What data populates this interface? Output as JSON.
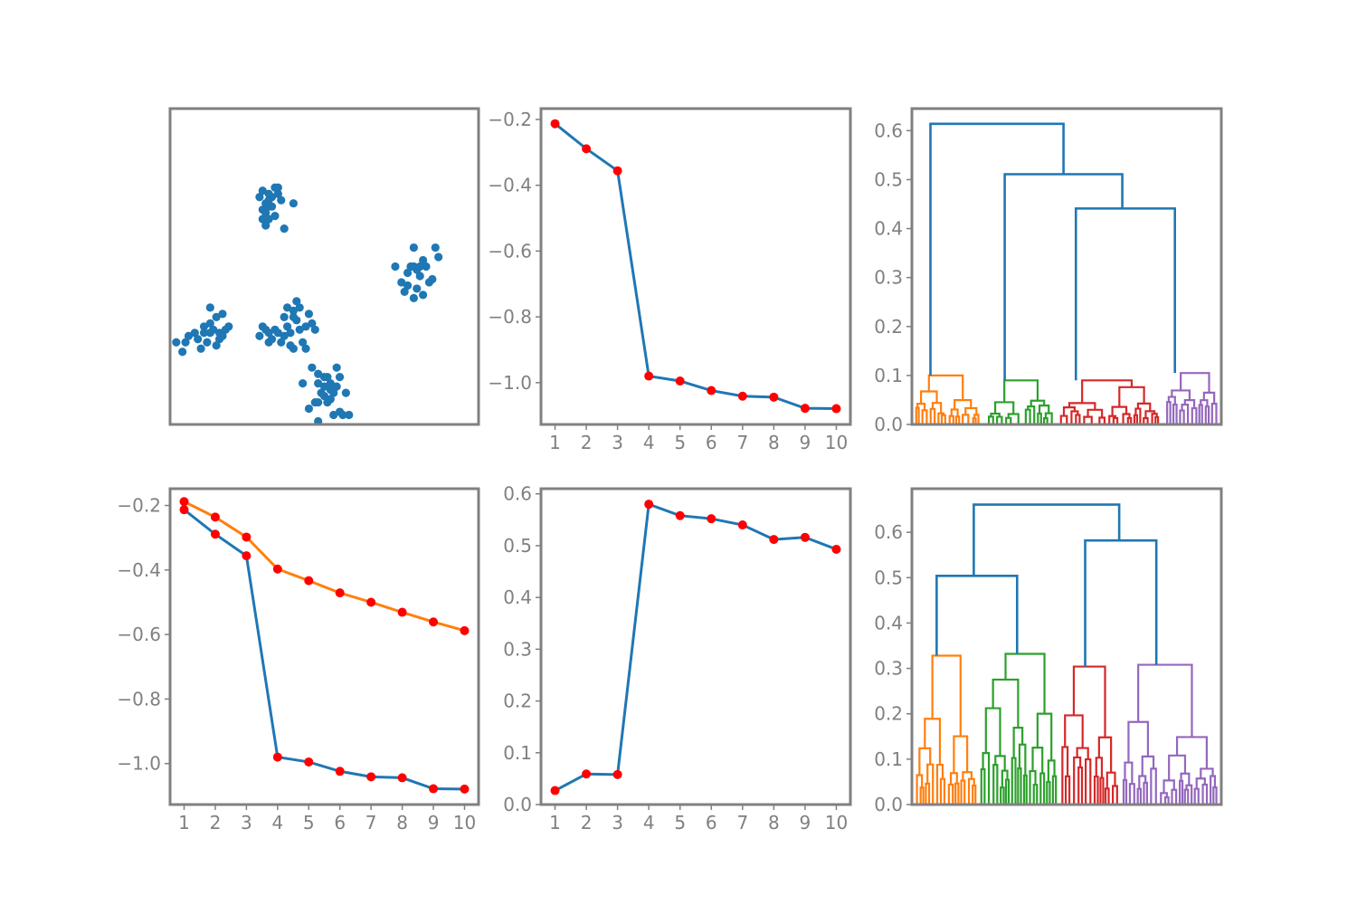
{
  "colors": {
    "blue": "#1f77b4",
    "orange": "#ff7f0e",
    "green": "#2ca02c",
    "red": "#d62728",
    "purple": "#9467bd",
    "marker": "#ff0000",
    "axis": "#808080"
  },
  "chart_data": [
    {
      "id": "scatter",
      "type": "scatter",
      "xlim": [
        0,
        10
      ],
      "ylim": [
        0,
        10
      ],
      "axes_visible": false,
      "series": [
        {
          "color": "#1f77b4",
          "points": [
            [
              2.9,
              2.8
            ],
            [
              3.0,
              3.1
            ],
            [
              3.1,
              3.0
            ],
            [
              3.2,
              2.6
            ],
            [
              3.2,
              2.9
            ],
            [
              3.3,
              2.7
            ],
            [
              3.4,
              3.0
            ],
            [
              3.5,
              2.9
            ],
            [
              3.6,
              2.6
            ],
            [
              3.7,
              2.8
            ],
            [
              3.8,
              3.1
            ],
            [
              3.9,
              2.9
            ],
            [
              4.1,
              3.3
            ],
            [
              4.4,
              3.1
            ],
            [
              4.6,
              3.2
            ],
            [
              4.2,
              3.0
            ],
            [
              4.0,
              2.4
            ],
            [
              4.3,
              2.6
            ],
            [
              3.7,
              3.4
            ],
            [
              4.0,
              3.6
            ],
            [
              3.8,
              3.7
            ],
            [
              4.2,
              3.7
            ],
            [
              4.1,
              3.9
            ],
            [
              4.0,
              3.4
            ],
            [
              4.4,
              2.4
            ],
            [
              4.7,
              3.0
            ],
            [
              3.9,
              2.5
            ],
            [
              4.5,
              3.5
            ],
            [
              0.2,
              2.6
            ],
            [
              0.4,
              2.3
            ],
            [
              0.5,
              2.6
            ],
            [
              0.6,
              2.8
            ],
            [
              0.9,
              2.7
            ],
            [
              1.1,
              3.1
            ],
            [
              1.0,
              2.4
            ],
            [
              1.3,
              2.9
            ],
            [
              1.5,
              2.5
            ],
            [
              1.6,
              2.7
            ],
            [
              1.3,
              3.2
            ],
            [
              1.6,
              2.9
            ],
            [
              1.5,
              3.4
            ],
            [
              1.4,
              3.0
            ],
            [
              1.7,
              3.5
            ],
            [
              1.3,
              3.7
            ],
            [
              1.8,
              3.0
            ],
            [
              1.2,
              2.6
            ],
            [
              1.1,
              2.9
            ],
            [
              0.8,
              2.9
            ],
            [
              1.9,
              3.1
            ],
            [
              1.7,
              2.8
            ],
            [
              2.9,
              7.2
            ],
            [
              3.0,
              7.4
            ],
            [
              3.1,
              7.0
            ],
            [
              3.2,
              7.1
            ],
            [
              3.0,
              6.8
            ],
            [
              3.0,
              6.5
            ],
            [
              3.1,
              6.7
            ],
            [
              3.2,
              6.9
            ],
            [
              3.4,
              7.5
            ],
            [
              3.3,
              7.2
            ],
            [
              3.5,
              7.3
            ],
            [
              3.6,
              7.1
            ],
            [
              3.4,
              6.6
            ],
            [
              3.2,
              6.5
            ],
            [
              3.7,
              6.2
            ],
            [
              3.1,
              6.3
            ],
            [
              4.0,
              7.0
            ],
            [
              3.3,
              6.9
            ],
            [
              3.5,
              7.5
            ],
            [
              3.2,
              7.3
            ],
            [
              7.3,
              5.0
            ],
            [
              7.5,
              4.5
            ],
            [
              7.6,
              4.2
            ],
            [
              7.7,
              4.8
            ],
            [
              7.8,
              5.0
            ],
            [
              7.9,
              5.6
            ],
            [
              7.9,
              5.0
            ],
            [
              8.0,
              4.9
            ],
            [
              8.1,
              4.7
            ],
            [
              8.0,
              4.3
            ],
            [
              8.1,
              5.0
            ],
            [
              8.2,
              5.2
            ],
            [
              8.3,
              5.0
            ],
            [
              8.4,
              4.5
            ],
            [
              8.5,
              4.6
            ],
            [
              8.6,
              5.6
            ],
            [
              8.7,
              5.3
            ],
            [
              7.7,
              4.4
            ],
            [
              8.2,
              4.1
            ],
            [
              7.9,
              4.0
            ],
            [
              4.3,
              1.3
            ],
            [
              4.5,
              0.5
            ],
            [
              4.6,
              1.8
            ],
            [
              4.7,
              0.7
            ],
            [
              4.8,
              0.7
            ],
            [
              4.8,
              1.3
            ],
            [
              4.9,
              1.0
            ],
            [
              5.0,
              0.9
            ],
            [
              5.0,
              1.2
            ],
            [
              4.8,
              1.6
            ],
            [
              5.1,
              0.7
            ],
            [
              5.1,
              1.5
            ],
            [
              5.2,
              1.1
            ],
            [
              5.3,
              1.0
            ],
            [
              5.4,
              1.2
            ],
            [
              5.4,
              1.8
            ],
            [
              5.5,
              0.4
            ],
            [
              5.6,
              0.3
            ],
            [
              5.7,
              1.0
            ],
            [
              5.5,
              1.5
            ],
            [
              5.2,
              1.3
            ],
            [
              5.0,
              1.5
            ],
            [
              5.8,
              0.3
            ],
            [
              4.8,
              0.1
            ],
            [
              5.2,
              0.8
            ],
            [
              5.3,
              0.3
            ]
          ]
        }
      ]
    },
    {
      "id": "line-top",
      "type": "line",
      "x": [
        1,
        2,
        3,
        4,
        5,
        6,
        7,
        8,
        9,
        10
      ],
      "xlim": [
        0.55,
        10.45
      ],
      "ylim": [
        -1.127,
        -0.167
      ],
      "yticks": [
        -1.0,
        -0.8,
        -0.6,
        -0.4,
        -0.2
      ],
      "ytick_labels": [
        "−1.0",
        "−0.8",
        "−0.6",
        "−0.4",
        "−0.2"
      ],
      "xtick_labels": [
        "1",
        "2",
        "3",
        "4",
        "5",
        "6",
        "7",
        "8",
        "9",
        "10"
      ],
      "series": [
        {
          "color": "#1f77b4",
          "values": [
            -0.213,
            -0.289,
            -0.356,
            -0.98,
            -0.995,
            -1.024,
            -1.041,
            -1.044,
            -1.078,
            -1.079
          ]
        }
      ]
    },
    {
      "id": "dendrogram-top",
      "type": "dendrogram",
      "xlim": [
        0,
        100
      ],
      "ylim": [
        0,
        0.645
      ],
      "yticks": [
        0.0,
        0.1,
        0.2,
        0.3,
        0.4,
        0.5,
        0.6
      ],
      "ytick_labels": [
        "0.0",
        "0.1",
        "0.2",
        "0.3",
        "0.4",
        "0.5",
        "0.6"
      ],
      "link_color": "#1f77b4",
      "clusters": [
        {
          "color": "#ff7f0e",
          "x_range": [
            1,
            22
          ],
          "top": 0.1
        },
        {
          "color": "#2ca02c",
          "x_range": [
            24,
            46
          ],
          "top": 0.09
        },
        {
          "color": "#d62728",
          "x_range": [
            47,
            80
          ],
          "top": 0.09
        },
        {
          "color": "#9467bd",
          "x_range": [
            82,
            99
          ],
          "top": 0.105
        }
      ],
      "links": [
        {
          "left": 6,
          "right": 49,
          "height": 0.614,
          "left_base": 0.1,
          "right_base": 0.511
        },
        {
          "left": 30,
          "right": 68,
          "height": 0.511,
          "left_base": 0.09,
          "right_base": 0.441
        },
        {
          "left": 53,
          "right": 85,
          "height": 0.441,
          "left_base": 0.09,
          "right_base": 0.105
        }
      ]
    },
    {
      "id": "line-bottom-left",
      "type": "line",
      "x": [
        1,
        2,
        3,
        4,
        5,
        6,
        7,
        8,
        9,
        10
      ],
      "xlim": [
        0.55,
        10.45
      ],
      "ylim": [
        -1.127,
        -0.148
      ],
      "yticks": [
        -1.0,
        -0.8,
        -0.6,
        -0.4,
        -0.2
      ],
      "ytick_labels": [
        "−1.0",
        "−0.8",
        "−0.6",
        "−0.4",
        "−0.2"
      ],
      "xtick_labels": [
        "1",
        "2",
        "3",
        "4",
        "5",
        "6",
        "7",
        "8",
        "9",
        "10"
      ],
      "series": [
        {
          "color": "#1f77b4",
          "values": [
            -0.213,
            -0.289,
            -0.356,
            -0.98,
            -0.995,
            -1.024,
            -1.041,
            -1.044,
            -1.078,
            -1.079
          ]
        },
        {
          "color": "#ff7f0e",
          "values": [
            -0.188,
            -0.236,
            -0.298,
            -0.397,
            -0.433,
            -0.471,
            -0.5,
            -0.531,
            -0.561,
            -0.588
          ]
        }
      ]
    },
    {
      "id": "line-bottom-mid",
      "type": "line",
      "x": [
        1,
        2,
        3,
        4,
        5,
        6,
        7,
        8,
        9,
        10
      ],
      "xlim": [
        0.55,
        10.45
      ],
      "ylim": [
        0.0,
        0.61
      ],
      "yticks": [
        0.0,
        0.1,
        0.2,
        0.3,
        0.4,
        0.5,
        0.6
      ],
      "ytick_labels": [
        "0.0",
        "0.1",
        "0.2",
        "0.3",
        "0.4",
        "0.5",
        "0.6"
      ],
      "xtick_labels": [
        "1",
        "2",
        "3",
        "4",
        "5",
        "6",
        "7",
        "8",
        "9",
        "10"
      ],
      "series": [
        {
          "color": "#1f77b4",
          "values": [
            0.027,
            0.059,
            0.058,
            0.58,
            0.558,
            0.552,
            0.54,
            0.512,
            0.516,
            0.493
          ]
        }
      ]
    },
    {
      "id": "dendrogram-bottom",
      "type": "dendrogram",
      "xlim": [
        0,
        100
      ],
      "ylim": [
        0,
        0.696
      ],
      "yticks": [
        0.0,
        0.1,
        0.2,
        0.3,
        0.4,
        0.5,
        0.6
      ],
      "ytick_labels": [
        "0.0",
        "0.1",
        "0.2",
        "0.3",
        "0.4",
        "0.5",
        "0.6"
      ],
      "link_color": "#1f77b4",
      "clusters": [
        {
          "color": "#ff7f0e",
          "x_range": [
            1,
            21
          ],
          "top": 0.328
        },
        {
          "color": "#2ca02c",
          "x_range": [
            22,
            47
          ],
          "top": 0.332
        },
        {
          "color": "#d62728",
          "x_range": [
            48,
            67
          ],
          "top": 0.304
        },
        {
          "color": "#9467bd",
          "x_range": [
            68,
            99
          ],
          "top": 0.308
        }
      ],
      "links": [
        {
          "left": 8,
          "right": 34,
          "height": 0.504,
          "left_base": 0.328,
          "right_base": 0.332
        },
        {
          "left": 56,
          "right": 79,
          "height": 0.582,
          "left_base": 0.304,
          "right_base": 0.308
        },
        {
          "left": 20,
          "right": 67,
          "height": 0.661,
          "left_base": 0.504,
          "right_base": 0.582
        }
      ]
    }
  ]
}
